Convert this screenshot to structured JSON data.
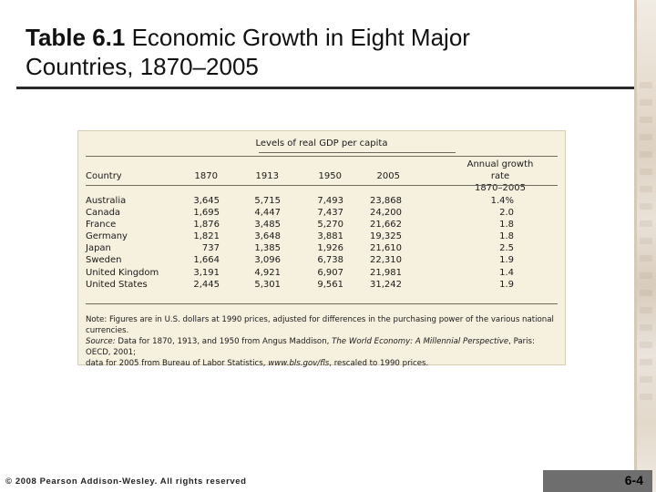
{
  "slide": {
    "title_bold": "Table 6.1",
    "title_rest": " Economic Growth in Eight Major",
    "title_line2": "Countries, 1870–2005",
    "copyright": "© 2008 Pearson Addison-Wesley. All rights reserved",
    "page_number": "6-4"
  },
  "table": {
    "group_header": "Levels of real GDP per capita",
    "columns": [
      "Country",
      "1870",
      "1913",
      "1950",
      "2005"
    ],
    "growth_header_line1": "Annual growth rate",
    "growth_header_line2": "1870–2005",
    "rows": [
      {
        "country": "Australia",
        "y1870": "3,645",
        "y1913": "5,715",
        "y1950": "7,493",
        "y2005": "23,868",
        "growth": "1.4%"
      },
      {
        "country": "Canada",
        "y1870": "1,695",
        "y1913": "4,447",
        "y1950": "7,437",
        "y2005": "24,200",
        "growth": "2.0"
      },
      {
        "country": "France",
        "y1870": "1,876",
        "y1913": "3,485",
        "y1950": "5,270",
        "y2005": "21,662",
        "growth": "1.8"
      },
      {
        "country": "Germany",
        "y1870": "1,821",
        "y1913": "3,648",
        "y1950": "3,881",
        "y2005": "19,325",
        "growth": "1.8"
      },
      {
        "country": "Japan",
        "y1870": "737",
        "y1913": "1,385",
        "y1950": "1,926",
        "y2005": "21,610",
        "growth": "2.5"
      },
      {
        "country": "Sweden",
        "y1870": "1,664",
        "y1913": "3,096",
        "y1950": "6,738",
        "y2005": "22,310",
        "growth": "1.9"
      },
      {
        "country": "United Kingdom",
        "y1870": "3,191",
        "y1913": "4,921",
        "y1950": "6,907",
        "y2005": "21,981",
        "growth": "1.4"
      },
      {
        "country": "United States",
        "y1870": "2,445",
        "y1913": "5,301",
        "y1950": "9,561",
        "y2005": "31,242",
        "growth": "1.9"
      }
    ],
    "note_line1": "Note: Figures are in U.S. dollars at 1990 prices, adjusted for differences in the purchasing power of the various national",
    "note_line2": "currencies.",
    "source_label": "Source:",
    "source_text1": " Data for 1870, 1913, and 1950 from Angus Maddison, ",
    "source_book": "The World Economy: A Millennial Perspective",
    "source_text2": ", Paris: OECD, 2001;",
    "source_line2_a": "data for 2005 from  Bureau of Labor Statistics, ",
    "source_url": "www.bls.gov/fls",
    "source_line2_b": ", rescaled to 1990 prices."
  }
}
